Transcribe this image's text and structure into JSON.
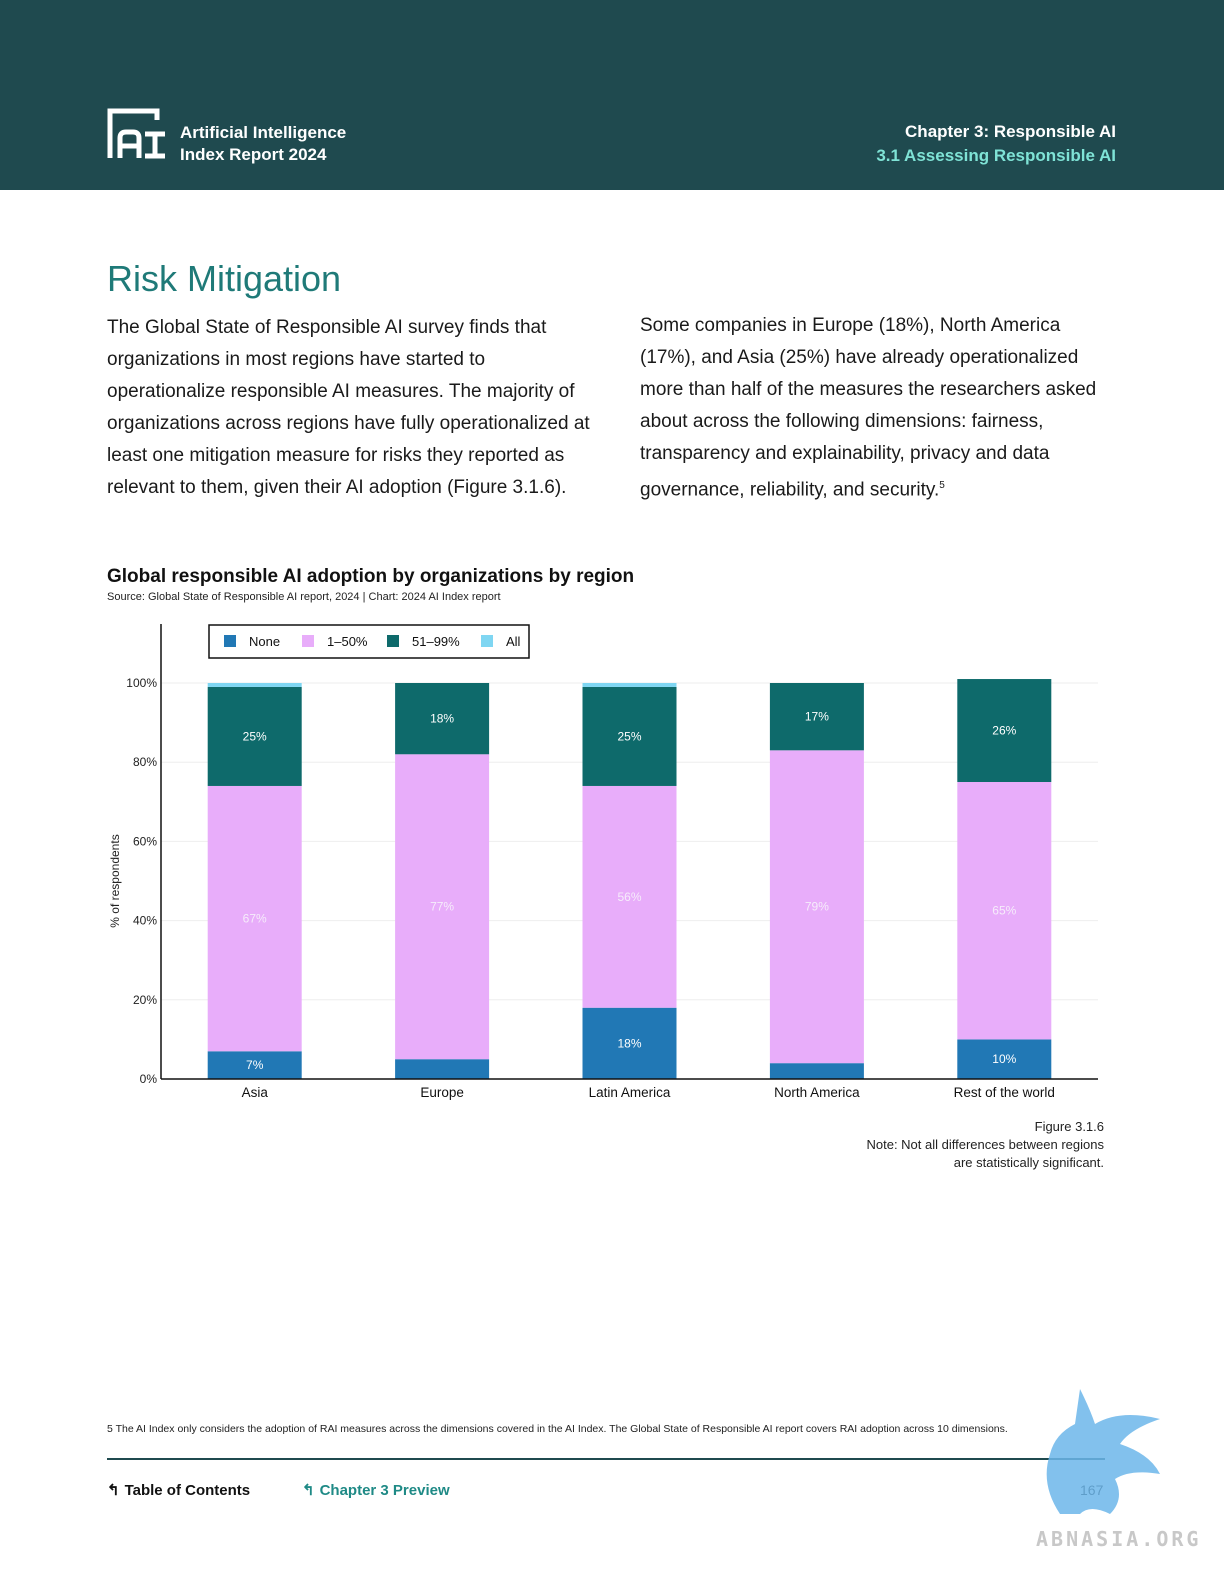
{
  "header": {
    "logo_text_line1": "Artificial Intelligence",
    "logo_text_line2": "Index Report 2024",
    "chapter": "Chapter 3: Responsible AI",
    "section": "3.1 Assessing Responsible AI"
  },
  "colors": {
    "header_bg": "#1f4a4f",
    "heading": "#1f7a78",
    "none": "#2178b5",
    "one_to_fifty": "#e8adfa",
    "fiftyone_to_99": "#0e6a6b",
    "all": "#7fd6f2"
  },
  "page": {
    "heading": "Risk Mitigation",
    "para1": "The Global State of Responsible AI survey finds that organizations in most regions have started to operationalize responsible AI measures. The majority of organizations across regions have fully operationalized at least one mitigation measure for risks they reported as relevant to them, given their AI adoption (Figure 3.1.6).",
    "para2": "Some companies in Europe (18%), North America (17%), and Asia (25%) have already operationalized more than half of the measures the researchers asked about across the following dimensions: fairness, transparency and explainability, privacy and data governance, reliability, and security.",
    "para2_sup": "5",
    "chart_title": "Global responsible AI adoption by organizations by region",
    "chart_source": "Source: Global State of Responsible AI report, 2024 | Chart: 2024 AI Index report",
    "figure_label": "Figure 3.1.6",
    "figure_note_line1": "Note: Not all differences between regions",
    "figure_note_line2": "are statistically significant.",
    "footnote": "5 The AI Index only considers the adoption of RAI measures across the dimensions covered in the AI Index. The Global State of Responsible AI report covers RAI adoption across 10 dimensions.",
    "nav_toc": "Table of Contents",
    "nav_chapter": "Chapter 3 Preview",
    "page_number": "167",
    "watermark": "ABNASIA.ORG"
  },
  "chart_data": {
    "type": "bar",
    "stacked": true,
    "title": "Global responsible AI adoption by organizations by region",
    "xlabel": "",
    "ylabel": "% of respondents",
    "ylim": [
      0,
      100
    ],
    "yticks": [
      0,
      20,
      40,
      60,
      80,
      100
    ],
    "ytick_labels": [
      "0%",
      "20%",
      "40%",
      "60%",
      "80%",
      "100%"
    ],
    "legend_position": "top-left",
    "categories": [
      "Asia",
      "Europe",
      "Latin America",
      "North America",
      "Rest of the world"
    ],
    "series": [
      {
        "name": "None",
        "values": [
          7,
          5,
          18,
          4,
          10
        ],
        "labels": [
          "7%",
          "",
          "18%",
          "",
          "10%"
        ]
      },
      {
        "name": "1–50%",
        "values": [
          67,
          77,
          56,
          79,
          65
        ],
        "labels": [
          "67%",
          "77%",
          "56%",
          "79%",
          "65%"
        ]
      },
      {
        "name": "51–99%",
        "values": [
          25,
          18,
          25,
          17,
          26
        ],
        "labels": [
          "25%",
          "18%",
          "25%",
          "17%",
          "26%"
        ]
      },
      {
        "name": "All",
        "values": [
          1,
          0,
          1,
          0,
          0
        ],
        "labels": [
          "",
          "",
          "",
          "",
          ""
        ]
      }
    ]
  }
}
